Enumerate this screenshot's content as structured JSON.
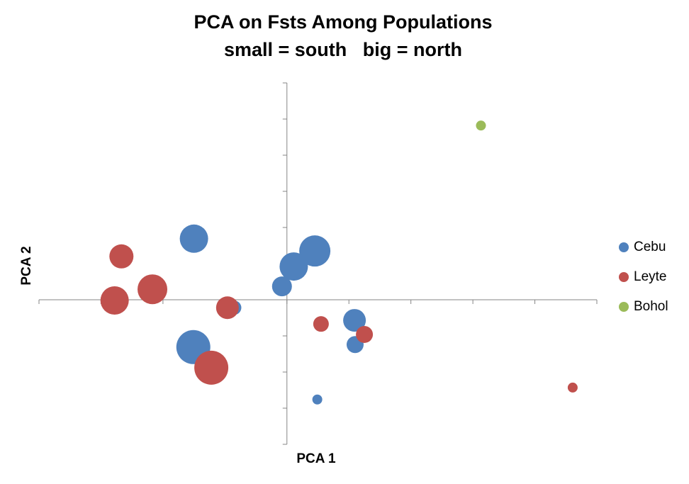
{
  "chart_data": {
    "type": "bubble",
    "title": "PCA on Fsts Among Populations",
    "subtitle": "small = south   big = north",
    "x_label": "PCA 1",
    "y_label": "PCA 2",
    "xlim": [
      -4,
      5
    ],
    "ylim": [
      -4,
      6
    ],
    "xticks": [
      -4,
      -3,
      -2,
      -1,
      0,
      1,
      2,
      3,
      4,
      5
    ],
    "yticks": [
      -4,
      -3,
      -2,
      -1,
      0,
      1,
      2,
      3,
      4,
      5,
      6
    ],
    "legend": "right",
    "series": [
      {
        "name": "Cebu",
        "color": "#4f81bd",
        "x": [
          -1.5,
          0.45,
          0.11,
          -0.08,
          -0.85,
          -1.51,
          1.09,
          1.1,
          0.49
        ],
        "y": [
          1.69,
          1.35,
          0.92,
          0.37,
          -0.22,
          -1.31,
          -0.57,
          -1.24,
          -2.76
        ],
        "size": [
          20,
          22,
          20,
          14,
          10,
          24,
          16,
          12,
          7
        ]
      },
      {
        "name": "Leyte",
        "color": "#c0504d",
        "x": [
          -2.67,
          -2.17,
          -2.78,
          -0.96,
          -1.22,
          0.55,
          1.25,
          4.61
        ],
        "y": [
          1.2,
          0.29,
          -0.02,
          -0.22,
          -1.88,
          -0.67,
          -0.96,
          -2.43
        ],
        "size": [
          17,
          21,
          20,
          16,
          24,
          11,
          12,
          7
        ]
      },
      {
        "name": "Bohol",
        "color": "#9bbb59",
        "x": [
          3.13
        ],
        "y": [
          4.82
        ],
        "size": [
          7
        ]
      }
    ]
  }
}
